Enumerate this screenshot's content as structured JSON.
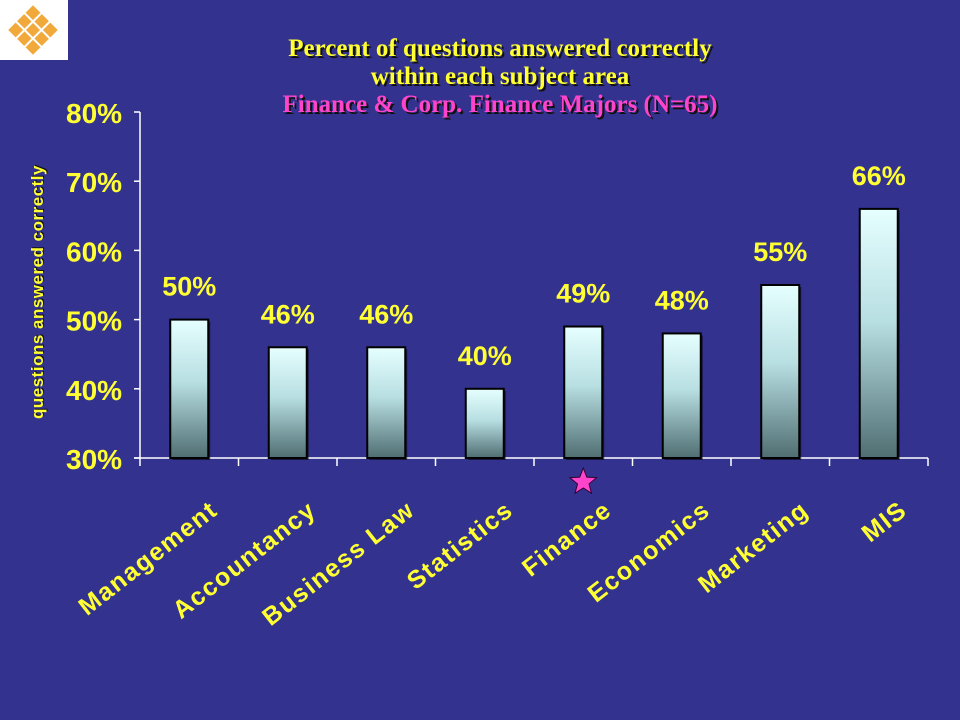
{
  "title": {
    "line1": "Percent of questions answered correctly",
    "line2": "within each subject area",
    "line3": "Finance & Corp. Finance Majors (N=65)"
  },
  "chart_data": {
    "type": "bar",
    "title": "Percent of questions answered correctly within each subject area",
    "subtitle": "Finance & Corp. Finance Majors (N=65)",
    "xlabel": "",
    "ylabel": "questions answered correctly",
    "categories": [
      "Management",
      "Accountancy",
      "Business Law",
      "Statistics",
      "Finance",
      "Economics",
      "Marketing",
      "MIS"
    ],
    "values": [
      50,
      46,
      46,
      40,
      49,
      48,
      55,
      66
    ],
    "value_labels": [
      "50%",
      "46%",
      "46%",
      "40%",
      "49%",
      "48%",
      "55%",
      "66%"
    ],
    "ylim": [
      30,
      80
    ],
    "yticks": [
      30,
      40,
      50,
      60,
      70,
      80
    ],
    "ytick_labels": [
      "30%",
      "40%",
      "50%",
      "60%",
      "70%",
      "80%"
    ],
    "highlight_category": "Finance",
    "highlight_marker": "star",
    "grid": false,
    "legend": "none",
    "colors": {
      "background": "#33338f",
      "text": "#ffff33",
      "subtitle": "#ff44cc",
      "bar_top": "#e6ffff",
      "bar_bottom": "#4f6e72",
      "star": "#ff44cc"
    }
  }
}
